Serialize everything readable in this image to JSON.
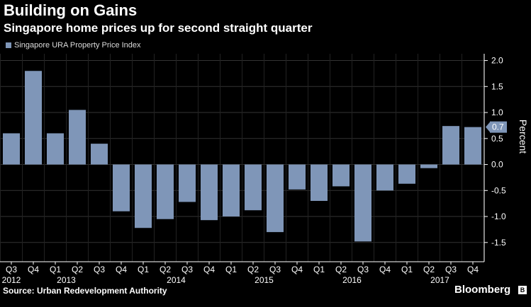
{
  "header": {
    "title": "Building on Gains",
    "subtitle": "Singapore home prices up for second straight quarter"
  },
  "footer": {
    "source": "Source: Urban Redevelopment Authority",
    "brand": "Bloomberg"
  },
  "colors": {
    "bar": "#7f96b8",
    "background": "#000000",
    "grid": "#333333",
    "callout_bg": "#7f96b8"
  },
  "chart_data": {
    "type": "bar",
    "title": "Building on Gains",
    "subtitle": "Singapore home prices up for second straight quarter",
    "series": [
      {
        "name": "Singapore URA Property Price Index",
        "values": [
          0.6,
          1.8,
          0.6,
          1.05,
          0.4,
          -0.9,
          -1.22,
          -1.05,
          -0.72,
          -1.07,
          -1.0,
          -0.88,
          -1.3,
          -0.48,
          -0.7,
          -0.42,
          -1.48,
          -0.5,
          -0.37,
          -0.07,
          0.74,
          0.72
        ]
      }
    ],
    "categories": [
      "Q3",
      "Q4",
      "Q1",
      "Q2",
      "Q3",
      "Q4",
      "Q1",
      "Q2",
      "Q3",
      "Q4",
      "Q1",
      "Q2",
      "Q3",
      "Q4",
      "Q1",
      "Q2",
      "Q3",
      "Q4",
      "Q1",
      "Q2",
      "Q3",
      "Q4"
    ],
    "years": [
      {
        "label": "2012",
        "index": 0
      },
      {
        "label": "2013",
        "index": 2.5
      },
      {
        "label": "2014",
        "index": 7.5
      },
      {
        "label": "2015",
        "index": 11.5
      },
      {
        "label": "2016",
        "index": 15.5
      },
      {
        "label": "2017",
        "index": 19.5
      }
    ],
    "y_ticks": [
      "2.0",
      "1.5",
      "1.0",
      "0.5",
      "0.0",
      "-0.5",
      "-1.0",
      "-1.5"
    ],
    "y_tick_values": [
      2.0,
      1.5,
      1.0,
      0.5,
      0.0,
      -0.5,
      -1.0,
      -1.5
    ],
    "ylim": [
      -1.87,
      2.13
    ],
    "ylabel": "Percent",
    "xlabel": "",
    "callout": {
      "label": "0.7",
      "value": 0.72
    },
    "legend": "Singapore URA Property Price Index",
    "grid": true
  }
}
